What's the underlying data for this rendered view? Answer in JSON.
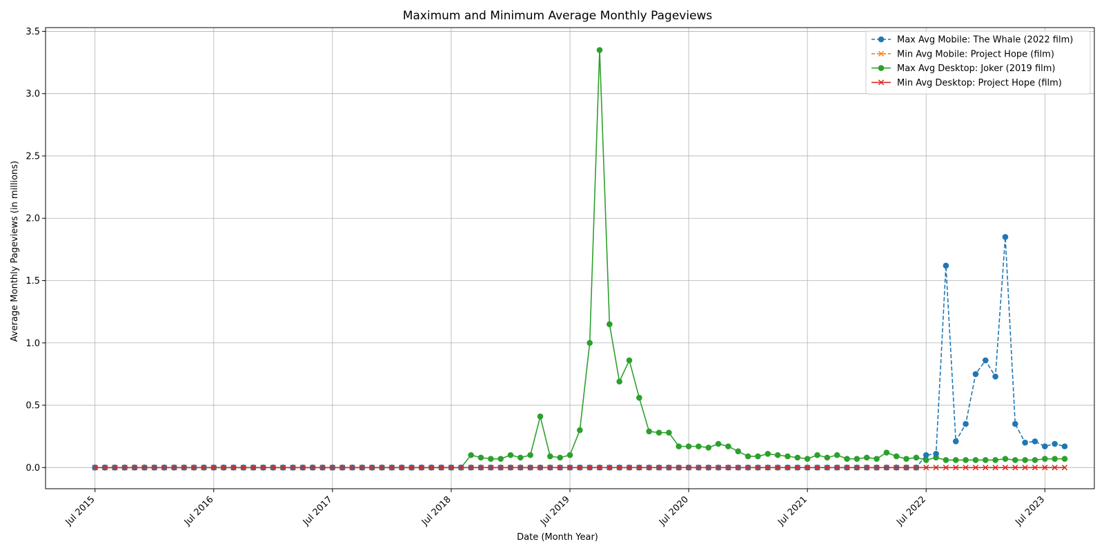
{
  "chart_data": {
    "type": "line",
    "title": "Maximum and Minimum Average Monthly Pageviews",
    "xlabel": "Date (Month Year)",
    "ylabel": "Average Monthly Pageviews (in millions)",
    "x_tick_labels": [
      "Jul 2015",
      "Jul 2016",
      "Jul 2017",
      "Jul 2018",
      "Jul 2019",
      "Jul 2020",
      "Jul 2021",
      "Jul 2022",
      "Jul 2023"
    ],
    "y_tick_labels": [
      "0.0",
      "0.5",
      "1.0",
      "1.5",
      "2.0",
      "2.5",
      "3.0",
      "3.5"
    ],
    "ylim": [
      -0.17,
      3.53
    ],
    "xlim": [
      "2015-02",
      "2023-12"
    ],
    "grid": true,
    "legend_position": "top-right",
    "series": [
      {
        "name": "Max Avg Mobile: The Whale (2022 film)",
        "color": "#1f77b4",
        "line_style": "dashed",
        "marker": "circle",
        "x_start": "2015-07",
        "values": [
          0,
          0,
          0,
          0,
          0,
          0,
          0,
          0,
          0,
          0,
          0,
          0,
          0,
          0,
          0,
          0,
          0,
          0,
          0,
          0,
          0,
          0,
          0,
          0,
          0,
          0,
          0,
          0,
          0,
          0,
          0,
          0,
          0,
          0,
          0,
          0,
          0,
          0,
          0,
          0,
          0,
          0,
          0,
          0,
          0,
          0,
          0,
          0,
          0,
          0,
          0,
          0,
          0,
          0,
          0,
          0,
          0,
          0,
          0,
          0,
          0,
          0,
          0,
          0,
          0,
          0,
          0,
          0,
          0,
          0,
          0,
          0,
          0,
          0,
          0,
          0,
          0,
          0,
          0,
          0,
          0,
          0,
          0,
          0,
          0.1,
          0.11,
          1.62,
          0.21,
          0.35,
          0.75,
          0.86,
          0.73,
          1.85,
          0.35,
          0.2,
          0.21,
          0.17,
          0.19,
          0.17
        ]
      },
      {
        "name": "Min Avg Mobile: Project Hope (film)",
        "color": "#ff7f0e",
        "line_style": "dashed",
        "marker": "x",
        "x_start": "2015-07",
        "values": [
          0,
          0,
          0,
          0,
          0,
          0,
          0,
          0,
          0,
          0,
          0,
          0,
          0,
          0,
          0,
          0,
          0,
          0,
          0,
          0,
          0,
          0,
          0,
          0,
          0,
          0,
          0,
          0,
          0,
          0,
          0,
          0,
          0,
          0,
          0,
          0,
          0,
          0,
          0,
          0,
          0,
          0,
          0,
          0,
          0,
          0,
          0,
          0,
          0,
          0,
          0,
          0,
          0,
          0,
          0,
          0,
          0,
          0,
          0,
          0,
          0,
          0,
          0,
          0,
          0,
          0,
          0,
          0,
          0,
          0,
          0,
          0,
          0,
          0,
          0,
          0,
          0,
          0,
          0,
          0,
          0,
          0,
          0,
          0,
          0,
          0,
          0,
          0,
          0,
          0,
          0,
          0,
          0,
          0,
          0,
          0,
          0,
          0,
          0
        ]
      },
      {
        "name": "Max Avg Desktop: Joker (2019 film)",
        "color": "#2ca02c",
        "line_style": "solid",
        "marker": "circle",
        "x_start": "2015-07",
        "values": [
          0,
          0,
          0,
          0,
          0,
          0,
          0,
          0,
          0,
          0,
          0,
          0,
          0,
          0,
          0,
          0,
          0,
          0,
          0,
          0,
          0,
          0,
          0,
          0,
          0,
          0,
          0,
          0,
          0,
          0,
          0,
          0,
          0,
          0,
          0,
          0,
          0,
          0,
          0.1,
          0.08,
          0.07,
          0.07,
          0.1,
          0.08,
          0.1,
          0.41,
          0.09,
          0.08,
          0.1,
          0.3,
          1.0,
          3.35,
          1.15,
          0.69,
          0.86,
          0.56,
          0.29,
          0.28,
          0.28,
          0.17,
          0.17,
          0.17,
          0.16,
          0.19,
          0.17,
          0.13,
          0.09,
          0.09,
          0.11,
          0.1,
          0.09,
          0.08,
          0.07,
          0.1,
          0.08,
          0.1,
          0.07,
          0.07,
          0.08,
          0.07,
          0.12,
          0.09,
          0.07,
          0.08,
          0.06,
          0.08,
          0.06,
          0.06,
          0.06,
          0.06,
          0.06,
          0.06,
          0.07,
          0.06,
          0.06,
          0.06,
          0.07,
          0.07,
          0.07
        ]
      },
      {
        "name": "Min Avg Desktop: Project Hope (film)",
        "color": "#d62728",
        "line_style": "solid",
        "marker": "x",
        "x_start": "2015-07",
        "values": [
          0,
          0,
          0,
          0,
          0,
          0,
          0,
          0,
          0,
          0,
          0,
          0,
          0,
          0,
          0,
          0,
          0,
          0,
          0,
          0,
          0,
          0,
          0,
          0,
          0,
          0,
          0,
          0,
          0,
          0,
          0,
          0,
          0,
          0,
          0,
          0,
          0,
          0,
          0,
          0,
          0,
          0,
          0,
          0,
          0,
          0,
          0,
          0,
          0,
          0,
          0,
          0,
          0,
          0,
          0,
          0,
          0,
          0,
          0,
          0,
          0,
          0,
          0,
          0,
          0,
          0,
          0,
          0,
          0,
          0,
          0,
          0,
          0,
          0,
          0,
          0,
          0,
          0,
          0,
          0,
          0,
          0,
          0,
          0,
          0,
          0,
          0,
          0,
          0,
          0,
          0,
          0,
          0,
          0,
          0,
          0,
          0,
          0,
          0
        ]
      }
    ]
  }
}
